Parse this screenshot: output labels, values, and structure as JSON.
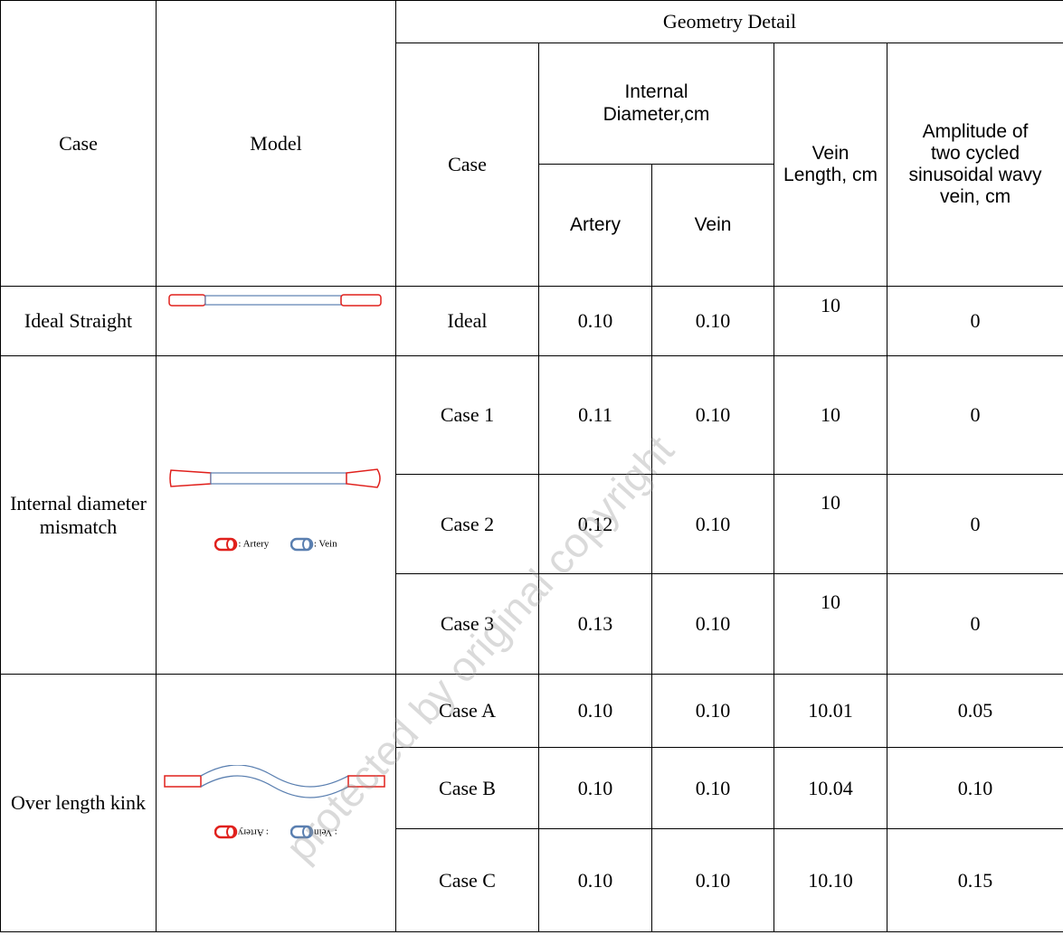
{
  "table": {
    "header": {
      "case": "Case",
      "model": "Model",
      "geometry_detail": "Geometry Detail",
      "sub_case": "Case",
      "internal_diameter": "Internal Diameter,cm",
      "vein_length": "Vein Length, cm",
      "amplitude": "Amplitude of two cycled sinusoidal wavy vein, cm",
      "artery": "Artery",
      "vein": "Vein"
    },
    "groups": [
      {
        "name": "Ideal Straight",
        "rows": [
          [
            "Ideal",
            "0.10",
            "0.10",
            "10",
            "0"
          ]
        ]
      },
      {
        "name": "Internal diameter mismatch",
        "legend": {
          "artery": ": Artery",
          "vein": ": Vein"
        },
        "rows": [
          [
            "Case 1",
            "0.11",
            "0.10",
            "10",
            "0"
          ],
          [
            "Case 2",
            "0.12",
            "0.10",
            "10",
            "0"
          ],
          [
            "Case 3",
            "0.13",
            "0.10",
            "10",
            "0"
          ]
        ]
      },
      {
        "name": "Over length kink",
        "legend": {
          "artery": ": Artery",
          "vein": ": Vein"
        },
        "rows": [
          [
            "Case A",
            "0.10",
            "0.10",
            "10.01",
            "0.05"
          ],
          [
            "Case B",
            "0.10",
            "0.10",
            "10.04",
            "0.10"
          ],
          [
            "Case C",
            "0.10",
            "0.10",
            "10.10",
            "0.15"
          ]
        ]
      }
    ]
  },
  "watermark": "protected by original copyright"
}
